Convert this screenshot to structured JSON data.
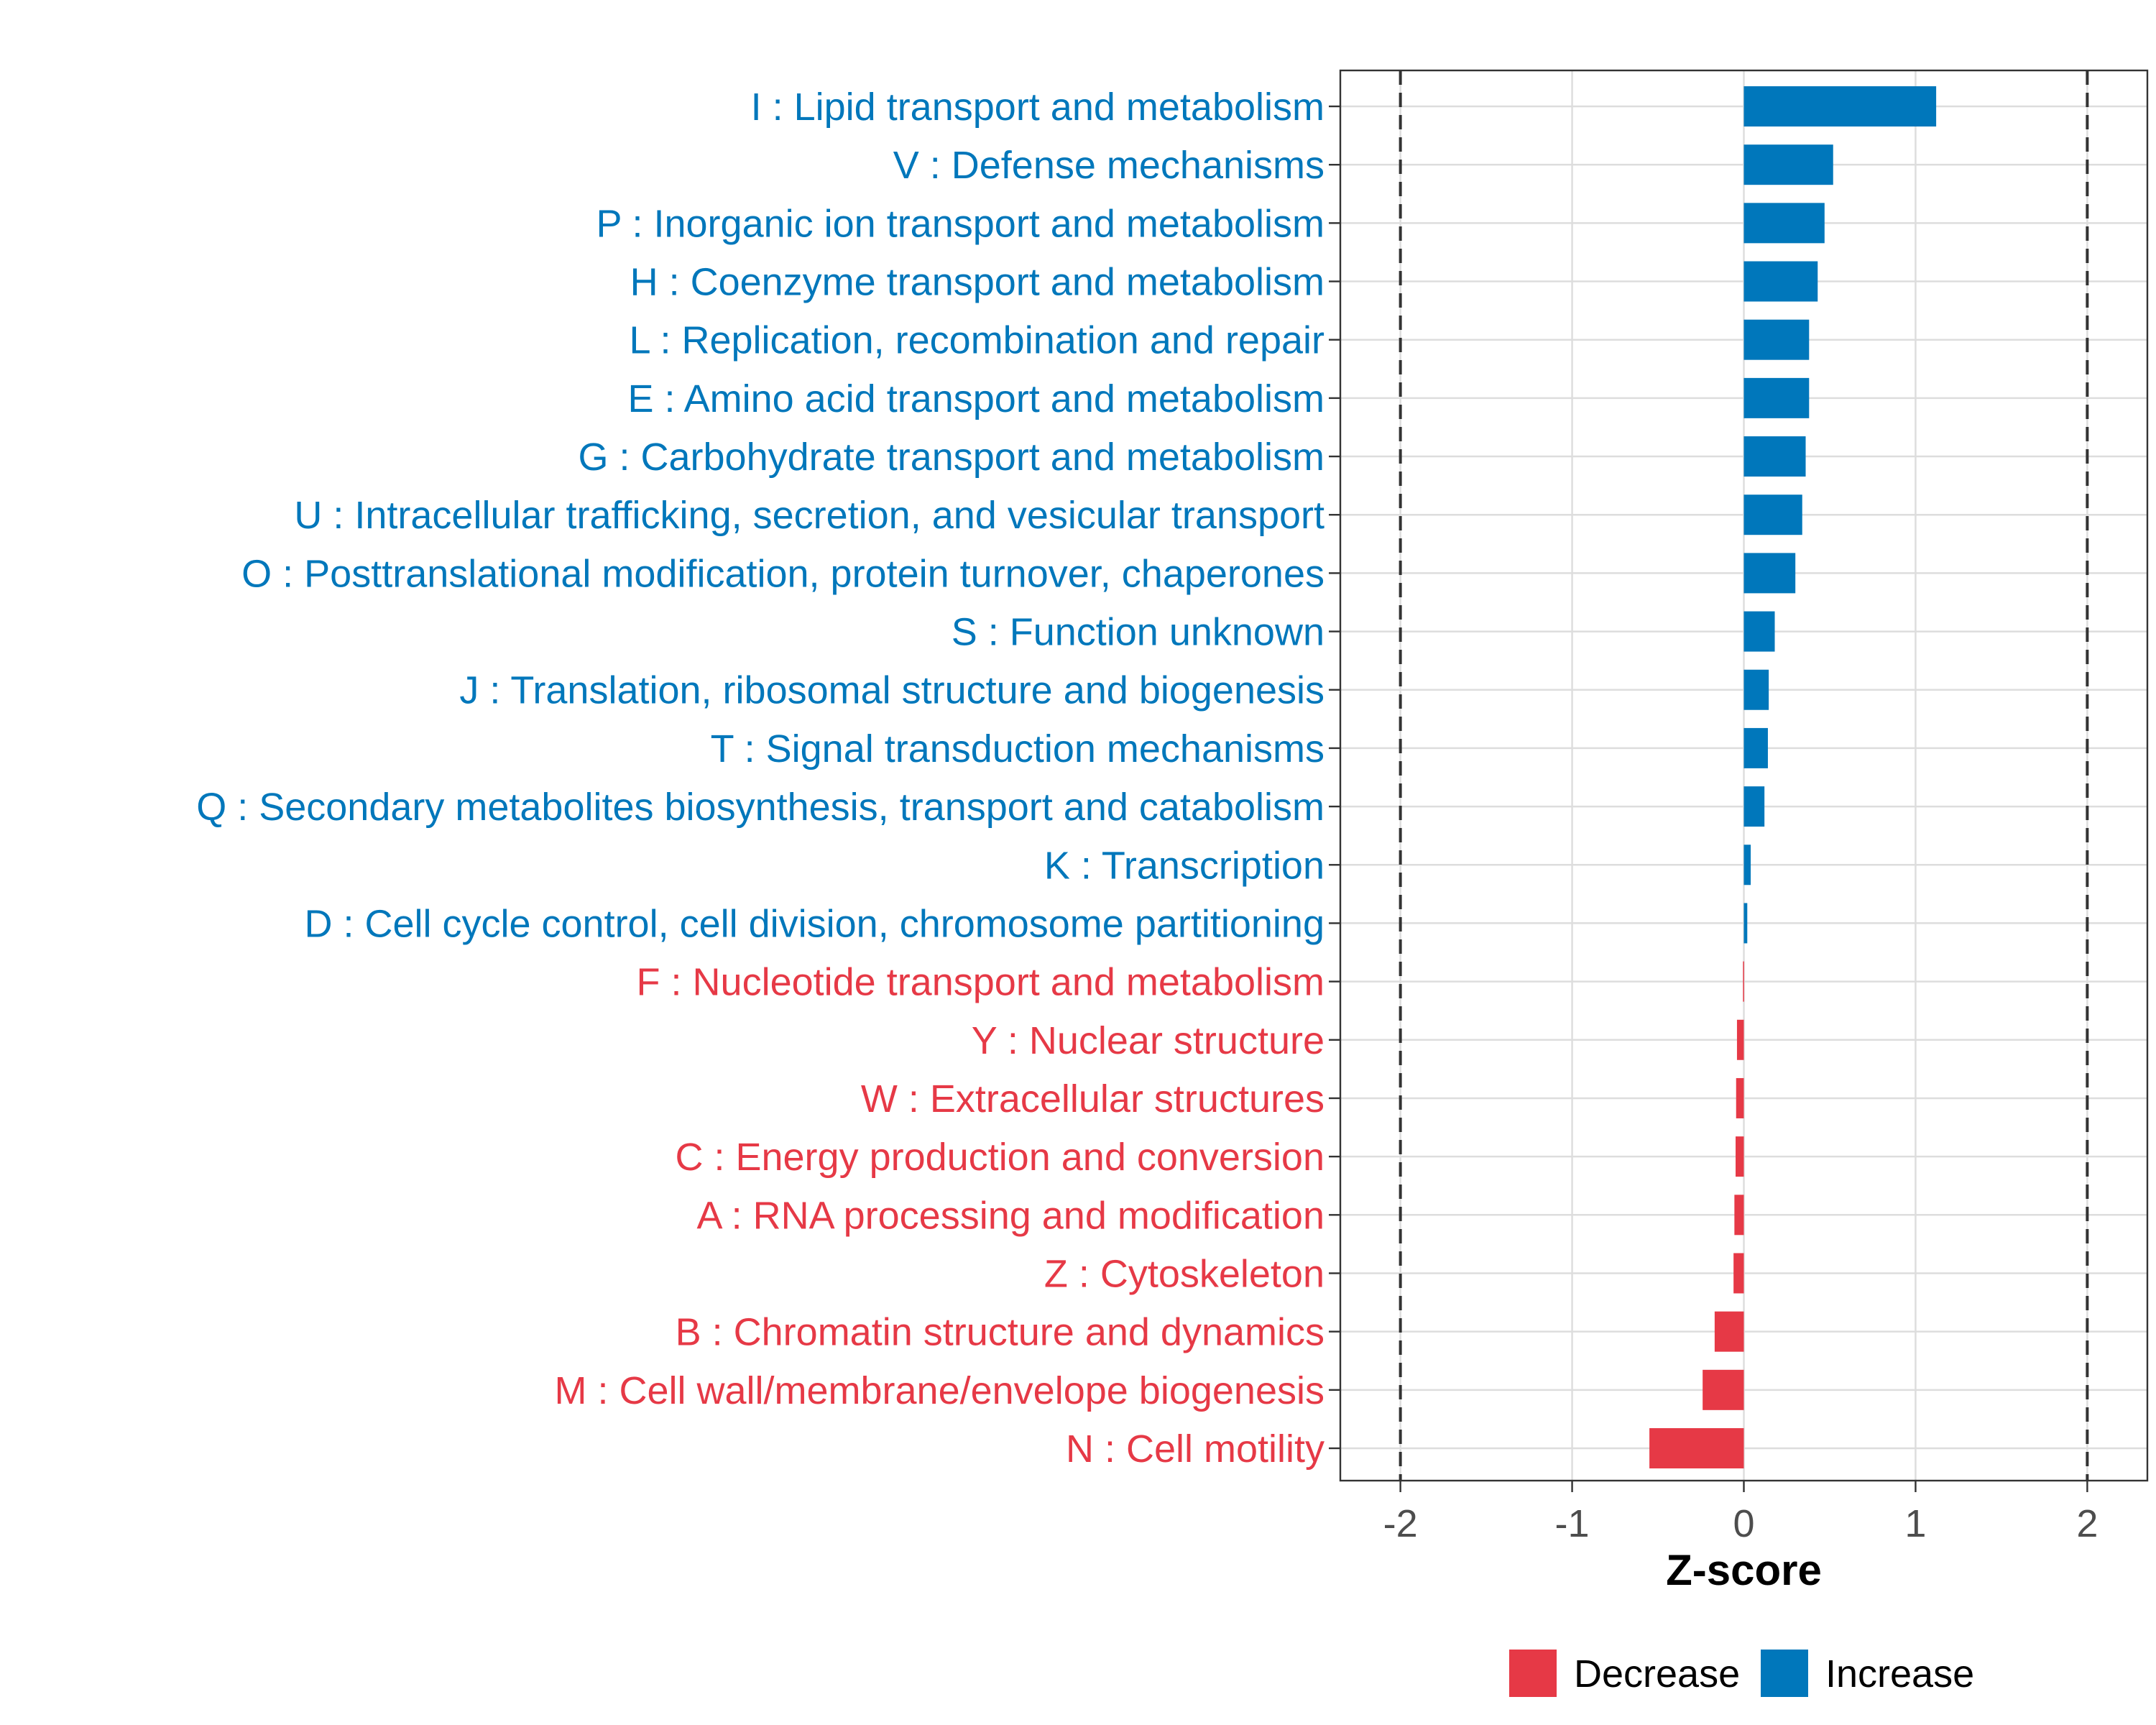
{
  "chart_data": {
    "type": "bar",
    "orientation": "horizontal",
    "xlabel": "Z-score",
    "xlim": [
      -2.35,
      2.35
    ],
    "xticks": [
      -2,
      -1,
      0,
      1,
      2
    ],
    "xtick_labels": [
      "-2",
      "-1",
      "0",
      "1",
      "2"
    ],
    "reference_lines": [
      -2,
      2
    ],
    "grid": true,
    "legend_position": "bottom",
    "colors": {
      "Decrease": "#E63946",
      "Increase": "#0077BB"
    },
    "legend": [
      {
        "label": "Decrease",
        "color": "#E63946"
      },
      {
        "label": "Increase",
        "color": "#0077BB"
      }
    ],
    "categories": [
      "I : Lipid transport and metabolism",
      "V : Defense mechanisms",
      "P : Inorganic ion transport and metabolism",
      "H : Coenzyme transport and metabolism",
      "L : Replication, recombination and repair",
      "E : Amino acid transport and metabolism",
      "G : Carbohydrate transport and metabolism",
      "U : Intracellular trafficking, secretion, and vesicular transport",
      "O : Posttranslational modification, protein turnover, chaperones",
      "S : Function unknown",
      "J : Translation, ribosomal structure and biogenesis",
      "T : Signal transduction mechanisms",
      "Q : Secondary metabolites biosynthesis, transport and catabolism",
      "K : Transcription",
      "D : Cell cycle control, cell division, chromosome partitioning",
      "F : Nucleotide transport and metabolism",
      "Y : Nuclear structure",
      "W : Extracellular structures",
      "C : Energy production and conversion",
      "A : RNA processing and modification",
      "Z : Cytoskeleton",
      "B : Chromatin structure and dynamics",
      "M : Cell wall/membrane/envelope biogenesis",
      "N : Cell motility"
    ],
    "values": [
      1.12,
      0.52,
      0.47,
      0.43,
      0.38,
      0.38,
      0.36,
      0.34,
      0.3,
      0.18,
      0.145,
      0.14,
      0.12,
      0.04,
      0.02,
      -0.005,
      -0.04,
      -0.045,
      -0.048,
      -0.055,
      -0.06,
      -0.17,
      -0.24,
      -0.55
    ],
    "direction": [
      "Increase",
      "Increase",
      "Increase",
      "Increase",
      "Increase",
      "Increase",
      "Increase",
      "Increase",
      "Increase",
      "Increase",
      "Increase",
      "Increase",
      "Increase",
      "Increase",
      "Increase",
      "Decrease",
      "Decrease",
      "Decrease",
      "Decrease",
      "Decrease",
      "Decrease",
      "Decrease",
      "Decrease",
      "Decrease"
    ]
  }
}
